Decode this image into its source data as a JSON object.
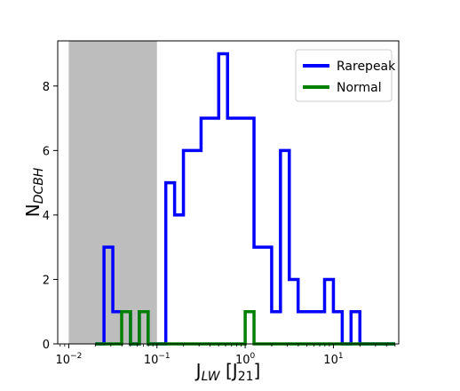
{
  "chart_data": {
    "type": "histogram",
    "xscale": "log",
    "xlim": [
      0.0075,
      55
    ],
    "ylim": [
      0,
      9.4
    ],
    "xlabel_main": "J",
    "xlabel_sub": "LW",
    "xlabel_bracket_open": " [J",
    "xlabel_bracket_sub": "21",
    "xlabel_bracket_close": "]",
    "ylabel_main": "N",
    "ylabel_sub": "DCBH",
    "x_ticks": [
      {
        "value": 0.01,
        "base": "10",
        "exp": "−2"
      },
      {
        "value": 0.1,
        "base": "10",
        "exp": "−1"
      },
      {
        "value": 1,
        "base": "10",
        "exp": "0"
      },
      {
        "value": 10,
        "base": "10",
        "exp": "1"
      }
    ],
    "y_ticks": [
      0,
      2,
      4,
      6,
      8
    ],
    "shaded_region": {
      "from": 0.01,
      "to": 0.1,
      "color": "#bdbdbd"
    },
    "legend_position": "top-right",
    "bin_edges": [
      0.02,
      0.0251,
      0.0316,
      0.0398,
      0.0501,
      0.0631,
      0.0794,
      0.1,
      0.1259,
      0.1585,
      0.1995,
      0.2512,
      0.3162,
      0.3981,
      0.5012,
      0.631,
      0.7943,
      1.0,
      1.2589,
      1.5849,
      1.9953,
      2.5119,
      3.1623,
      3.9811,
      5.0119,
      6.3096,
      7.9433,
      10.0,
      12.589,
      15.849,
      19.953,
      25.119,
      31.623,
      39.811,
      50.119
    ],
    "series": [
      {
        "name": "Rarepeak",
        "color": "#0000ff",
        "counts": [
          0,
          3,
          1,
          1,
          0,
          1,
          0,
          0,
          5,
          4,
          6,
          6,
          7,
          7,
          9,
          7,
          7,
          7,
          3,
          3,
          1,
          6,
          2,
          1,
          1,
          1,
          2,
          1,
          0,
          1,
          0,
          0,
          0,
          0
        ]
      },
      {
        "name": "Normal",
        "color": "#008000",
        "counts": [
          0,
          0,
          0,
          1,
          0,
          1,
          0,
          0,
          0,
          0,
          0,
          0,
          0,
          0,
          0,
          0,
          0,
          1,
          0,
          0,
          0,
          0,
          0,
          0,
          0,
          0,
          0,
          0,
          0,
          0,
          0,
          0,
          0,
          0
        ]
      }
    ]
  }
}
